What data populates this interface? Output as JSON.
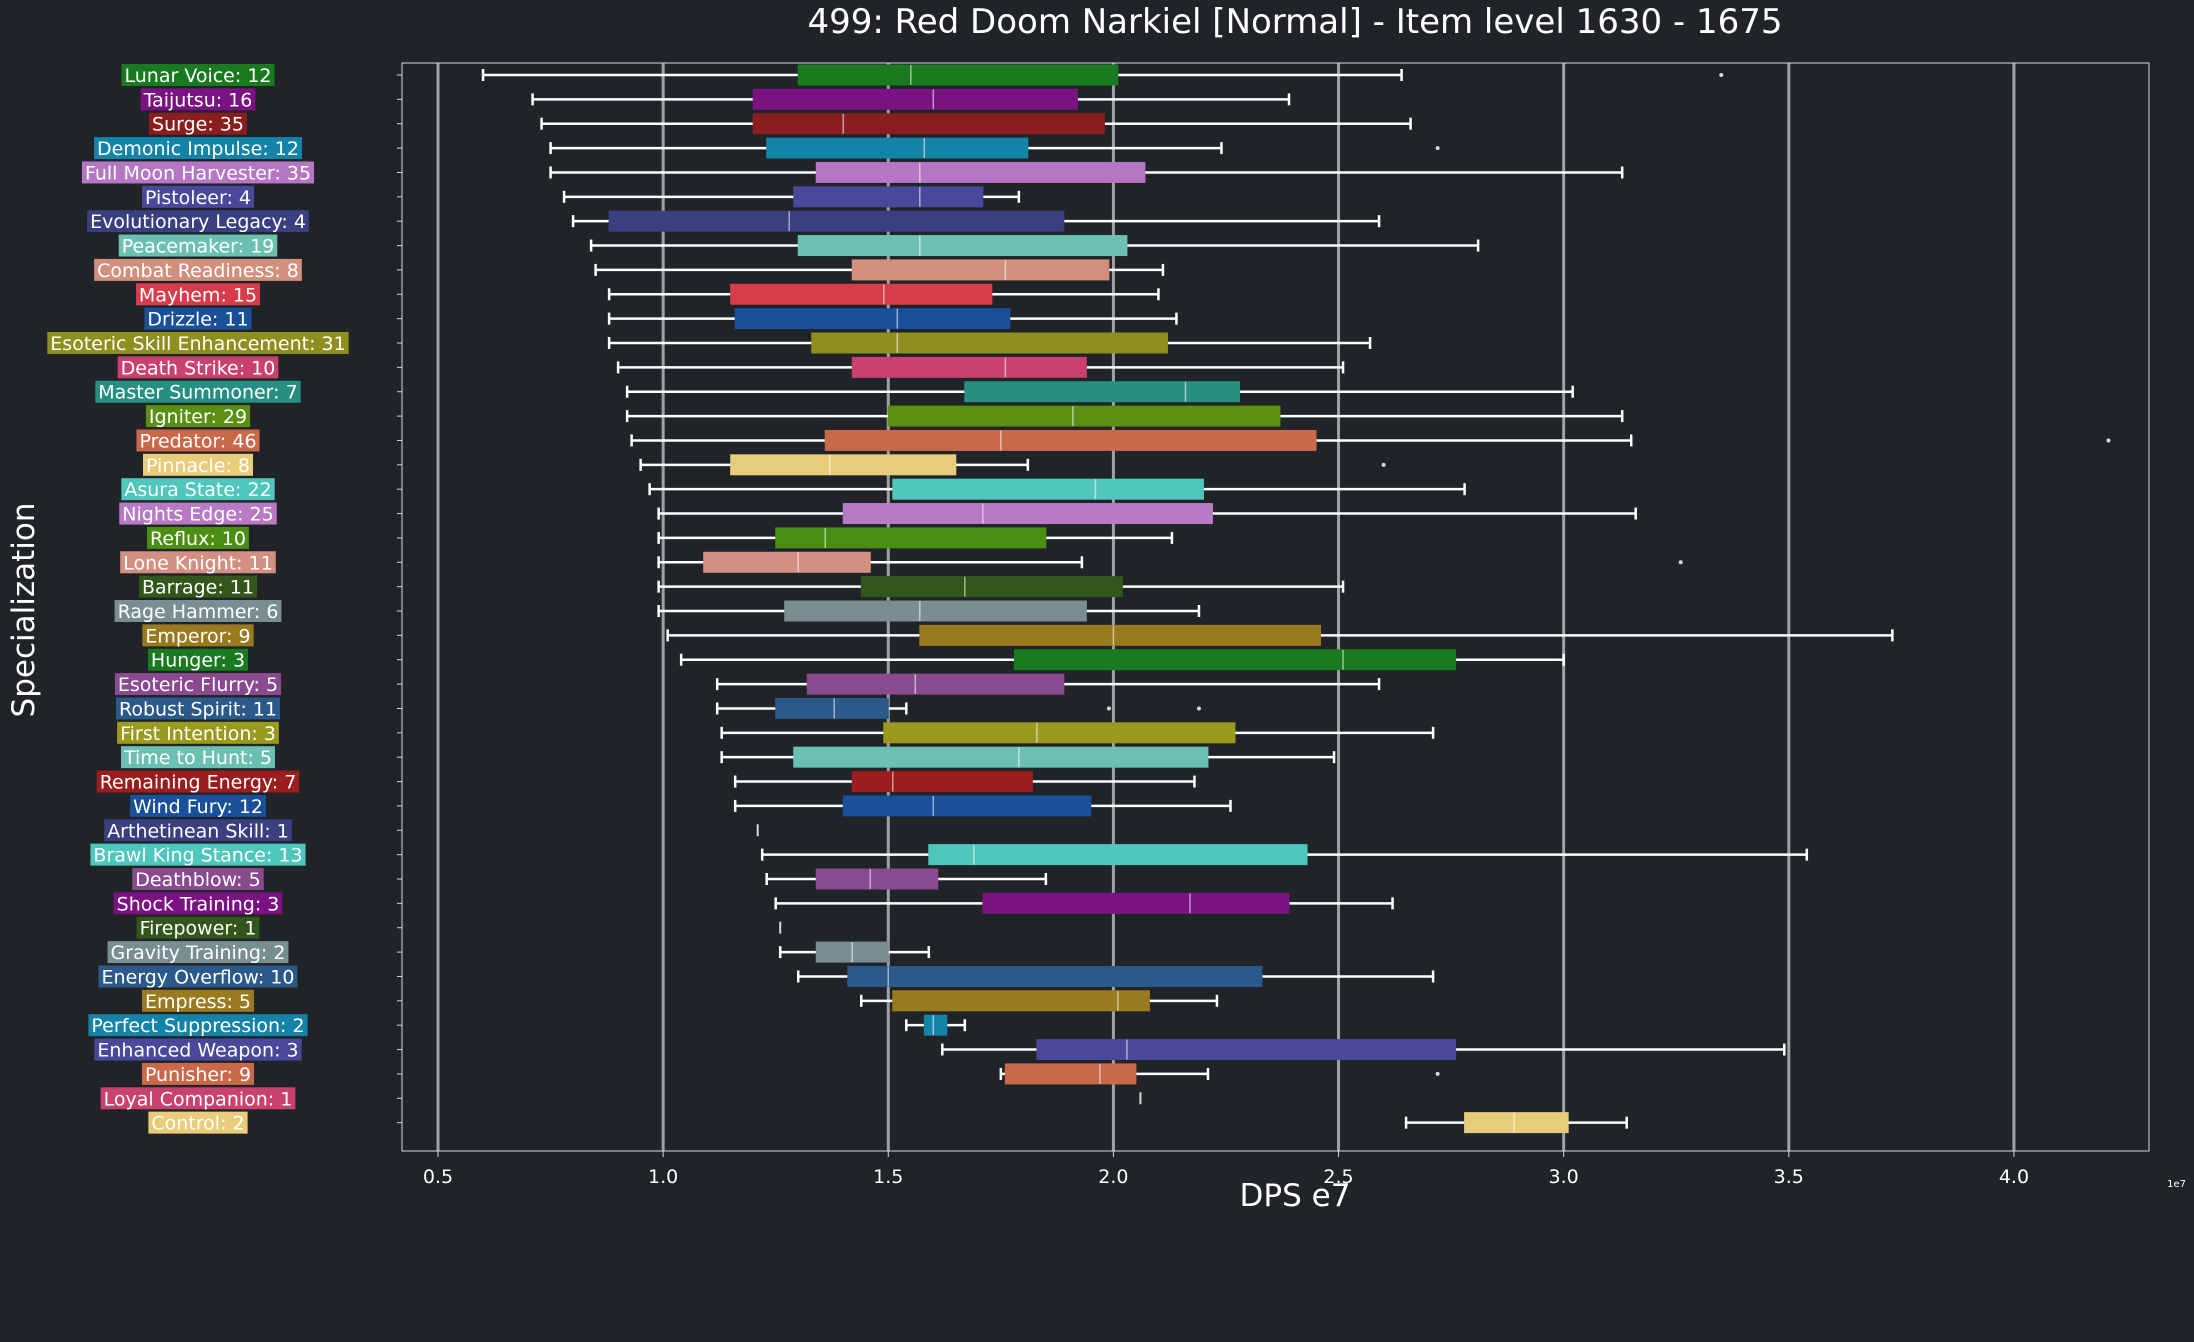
{
  "chart_data": {
    "type": "boxplot",
    "title": "499: Red Doom Narkiel [Normal] - Item level 1630 - 1675",
    "xlabel": "DPS e7",
    "ylabel": "Specialization",
    "x_exponent_label": "1e7",
    "xlim": [
      4200000,
      43000000
    ],
    "xticks": [
      5000000,
      10000000,
      15000000,
      20000000,
      25000000,
      30000000,
      35000000,
      40000000
    ],
    "xtick_labels": [
      "0.5",
      "1.0",
      "1.5",
      "2.0",
      "2.5",
      "3.0",
      "3.5",
      "4.0"
    ],
    "grid": "vertical",
    "series": [
      {
        "label": "Lunar Voice: 12",
        "color": "#1a7a1f",
        "whisker_low": 6000000.0,
        "q1": 13000000.0,
        "median": 15500000.0,
        "q3": 20100000.0,
        "whisker_high": 26400000.0,
        "outliers": [
          33500000.0
        ]
      },
      {
        "label": "Taijutsu: 16",
        "color": "#7b1282",
        "whisker_low": 7100000.0,
        "q1": 12000000.0,
        "median": 16000000.0,
        "q3": 19200000.0,
        "whisker_high": 23900000.0,
        "outliers": []
      },
      {
        "label": "Surge: 35",
        "color": "#8a1e1e",
        "whisker_low": 7300000.0,
        "q1": 12000000.0,
        "median": 14000000.0,
        "q3": 19800000.0,
        "whisker_high": 26600000.0,
        "outliers": []
      },
      {
        "label": "Demonic Impulse: 12",
        "color": "#1483a8",
        "whisker_low": 7500000.0,
        "q1": 12300000.0,
        "median": 15800000.0,
        "q3": 18100000.0,
        "whisker_high": 22400000.0,
        "outliers": [
          27200000.0
        ]
      },
      {
        "label": "Full Moon Harvester: 35",
        "color": "#b576c4",
        "whisker_low": 7500000.0,
        "q1": 13400000.0,
        "median": 15700000.0,
        "q3": 20700000.0,
        "whisker_high": 31300000.0,
        "outliers": []
      },
      {
        "label": "Pistoleer: 4",
        "color": "#49489a",
        "whisker_low": 7800000.0,
        "q1": 12900000.0,
        "median": 15700000.0,
        "q3": 17100000.0,
        "whisker_high": 17900000.0,
        "outliers": []
      },
      {
        "label": "Evolutionary Legacy: 4",
        "color": "#3a3f7f",
        "whisker_low": 8000000.0,
        "q1": 8800000.0,
        "median": 12800000.0,
        "q3": 18900000.0,
        "whisker_high": 25900000.0,
        "outliers": []
      },
      {
        "label": "Peacemaker: 19",
        "color": "#6bc0b2",
        "whisker_low": 8400000.0,
        "q1": 13000000.0,
        "median": 15700000.0,
        "q3": 20300000.0,
        "whisker_high": 28100000.0,
        "outliers": []
      },
      {
        "label": "Combat Readiness: 8",
        "color": "#d1907d",
        "whisker_low": 8500000.0,
        "q1": 14200000.0,
        "median": 17600000.0,
        "q3": 19900000.0,
        "whisker_high": 21100000.0,
        "outliers": []
      },
      {
        "label": "Mayhem: 15",
        "color": "#d63c4a",
        "whisker_low": 8800000.0,
        "q1": 11500000.0,
        "median": 14900000.0,
        "q3": 17300000.0,
        "whisker_high": 21000000.0,
        "outliers": []
      },
      {
        "label": "Drizzle: 11",
        "color": "#1a4f99",
        "whisker_low": 8800000.0,
        "q1": 11600000.0,
        "median": 15200000.0,
        "q3": 17700000.0,
        "whisker_high": 21400000.0,
        "outliers": []
      },
      {
        "label": "Esoteric Skill Enhancement: 31",
        "color": "#8f8f1f",
        "whisker_low": 8800000.0,
        "q1": 13300000.0,
        "median": 15200000.0,
        "q3": 21200000.0,
        "whisker_high": 25700000.0,
        "outliers": []
      },
      {
        "label": "Death Strike: 10",
        "color": "#c9416d",
        "whisker_low": 9000000.0,
        "q1": 14200000.0,
        "median": 17600000.0,
        "q3": 19400000.0,
        "whisker_high": 25100000.0,
        "outliers": []
      },
      {
        "label": "Master Summoner: 7",
        "color": "#278f81",
        "whisker_low": 9200000.0,
        "q1": 16700000.0,
        "median": 21600000.0,
        "q3": 22800000.0,
        "whisker_high": 30200000.0,
        "outliers": []
      },
      {
        "label": "Igniter: 29",
        "color": "#5a8f12",
        "whisker_low": 9200000.0,
        "q1": 15000000.0,
        "median": 19100000.0,
        "q3": 23700000.0,
        "whisker_high": 31300000.0,
        "outliers": []
      },
      {
        "label": "Predator: 46",
        "color": "#c9694a",
        "whisker_low": 9300000.0,
        "q1": 13600000.0,
        "median": 17500000.0,
        "q3": 24500000.0,
        "whisker_high": 31500000.0,
        "outliers": [
          42100000.0
        ]
      },
      {
        "label": "Pinnacle: 8",
        "color": "#e8cc7a",
        "whisker_low": 9500000.0,
        "q1": 11500000.0,
        "median": 13700000.0,
        "q3": 16500000.0,
        "whisker_high": 18100000.0,
        "outliers": [
          26000000.0
        ]
      },
      {
        "label": "Asura State: 22",
        "color": "#4fc7bc",
        "whisker_low": 9700000.0,
        "q1": 15100000.0,
        "median": 19600000.0,
        "q3": 22000000.0,
        "whisker_high": 27800000.0,
        "outliers": []
      },
      {
        "label": "Nights Edge: 25",
        "color": "#b87ac4",
        "whisker_low": 9900000.0,
        "q1": 14000000.0,
        "median": 17100000.0,
        "q3": 22200000.0,
        "whisker_high": 31600000.0,
        "outliers": []
      },
      {
        "label": "Reflux: 10",
        "color": "#4a8f12",
        "whisker_low": 9900000.0,
        "q1": 12500000.0,
        "median": 13600000.0,
        "q3": 18500000.0,
        "whisker_high": 21300000.0,
        "outliers": []
      },
      {
        "label": "Lone Knight: 11",
        "color": "#d38f82",
        "whisker_low": 9900000.0,
        "q1": 10900000.0,
        "median": 13000000.0,
        "q3": 14600000.0,
        "whisker_high": 19300000.0,
        "outliers": [
          32600000.0
        ]
      },
      {
        "label": "Barrage: 11",
        "color": "#33571a",
        "whisker_low": 9900000.0,
        "q1": 14400000.0,
        "median": 16700000.0,
        "q3": 20200000.0,
        "whisker_high": 25100000.0,
        "outliers": []
      },
      {
        "label": "Rage Hammer: 6",
        "color": "#788e92",
        "whisker_low": 9900000.0,
        "q1": 12700000.0,
        "median": 15700000.0,
        "q3": 19400000.0,
        "whisker_high": 21900000.0,
        "outliers": []
      },
      {
        "label": "Emperor: 9",
        "color": "#9a7a1f",
        "whisker_low": 10100000.0,
        "q1": 15700000.0,
        "median": 20000000.0,
        "q3": 24600000.0,
        "whisker_high": 37300000.0,
        "outliers": []
      },
      {
        "label": "Hunger: 3",
        "color": "#1a7a1f",
        "whisker_low": 10400000.0,
        "q1": 17800000.0,
        "median": 25100000.0,
        "q3": 27600000.0,
        "whisker_high": 30000000.0,
        "outliers": []
      },
      {
        "label": "Esoteric Flurry: 5",
        "color": "#8a4a8f",
        "whisker_low": 11200000.0,
        "q1": 13200000.0,
        "median": 15600000.0,
        "q3": 18900000.0,
        "whisker_high": 25900000.0,
        "outliers": []
      },
      {
        "label": "Robust Spirit: 11",
        "color": "#2b5a8a",
        "whisker_low": 11200000.0,
        "q1": 12500000.0,
        "median": 13800000.0,
        "q3": 15000000.0,
        "whisker_high": 15400000.0,
        "outliers": [
          19900000.0,
          21900000.0
        ]
      },
      {
        "label": "First Intention: 3",
        "color": "#9a9a1f",
        "whisker_low": 11300000.0,
        "q1": 14900000.0,
        "median": 18300000.0,
        "q3": 22700000.0,
        "whisker_high": 27100000.0,
        "outliers": []
      },
      {
        "label": "Time to Hunt: 5",
        "color": "#6bc0b2",
        "whisker_low": 11300000.0,
        "q1": 12900000.0,
        "median": 17900000.0,
        "q3": 22100000.0,
        "whisker_high": 24900000.0,
        "outliers": []
      },
      {
        "label": "Remaining Energy: 7",
        "color": "#9a1e1e",
        "whisker_low": 11600000.0,
        "q1": 14200000.0,
        "median": 15100000.0,
        "q3": 18200000.0,
        "whisker_high": 21800000.0,
        "outliers": []
      },
      {
        "label": "Wind Fury: 12",
        "color": "#1a4f99",
        "whisker_low": 11600000.0,
        "q1": 14000000.0,
        "median": 16000000.0,
        "q3": 19500000.0,
        "whisker_high": 22600000.0,
        "outliers": []
      },
      {
        "label": "Arthetinean Skill: 1",
        "color": "#3a3f7f",
        "whisker_low": 12100000.0,
        "q1": 12100000.0,
        "median": 12100000.0,
        "q3": 12100000.0,
        "whisker_high": 12100000.0,
        "outliers": []
      },
      {
        "label": "Brawl King Stance: 13",
        "color": "#4fc7bc",
        "whisker_low": 12200000.0,
        "q1": 15900000.0,
        "median": 16900000.0,
        "q3": 24300000.0,
        "whisker_high": 35400000.0,
        "outliers": []
      },
      {
        "label": "Deathblow: 5",
        "color": "#8a4a8f",
        "whisker_low": 12300000.0,
        "q1": 13400000.0,
        "median": 14600000.0,
        "q3": 16100000.0,
        "whisker_high": 18500000.0,
        "outliers": []
      },
      {
        "label": "Shock Training: 3",
        "color": "#7b1282",
        "whisker_low": 12500000.0,
        "q1": 17100000.0,
        "median": 21700000.0,
        "q3": 23900000.0,
        "whisker_high": 26200000.0,
        "outliers": []
      },
      {
        "label": "Firepower: 1",
        "color": "#33571a",
        "whisker_low": 12600000.0,
        "q1": 12600000.0,
        "median": 12600000.0,
        "q3": 12600000.0,
        "whisker_high": 12600000.0,
        "outliers": []
      },
      {
        "label": "Gravity Training: 2",
        "color": "#788e92",
        "whisker_low": 12600000.0,
        "q1": 13400000.0,
        "median": 14200000.0,
        "q3": 15000000.0,
        "whisker_high": 15900000.0,
        "outliers": []
      },
      {
        "label": "Energy Overflow: 10",
        "color": "#2b5a8a",
        "whisker_low": 13000000.0,
        "q1": 14100000.0,
        "median": 15000000.0,
        "q3": 23300000.0,
        "whisker_high": 27100000.0,
        "outliers": []
      },
      {
        "label": "Empress: 5",
        "color": "#9a7a1f",
        "whisker_low": 14400000.0,
        "q1": 15100000.0,
        "median": 20100000.0,
        "q3": 20800000.0,
        "whisker_high": 22300000.0,
        "outliers": []
      },
      {
        "label": "Perfect Suppression: 2",
        "color": "#1483a8",
        "whisker_low": 15400000.0,
        "q1": 15800000.0,
        "median": 16000000.0,
        "q3": 16300000.0,
        "whisker_high": 16700000.0,
        "outliers": []
      },
      {
        "label": "Enhanced Weapon: 3",
        "color": "#49489a",
        "whisker_low": 16200000.0,
        "q1": 18300000.0,
        "median": 20300000.0,
        "q3": 27600000.0,
        "whisker_high": 34900000.0,
        "outliers": []
      },
      {
        "label": "Punisher: 9",
        "color": "#c9694a",
        "whisker_low": 17500000.0,
        "q1": 17600000.0,
        "median": 19700000.0,
        "q3": 20500000.0,
        "whisker_high": 22100000.0,
        "outliers": [
          27200000.0
        ]
      },
      {
        "label": "Loyal Companion: 1",
        "color": "#c9416d",
        "whisker_low": 20600000.0,
        "q1": 20600000.0,
        "median": 20600000.0,
        "q3": 20600000.0,
        "whisker_high": 20600000.0,
        "outliers": []
      },
      {
        "label": "Control: 2",
        "color": "#e8cc7a",
        "whisker_low": 26500000.0,
        "q1": 27800000.0,
        "median": 28900000.0,
        "q3": 30100000.0,
        "whisker_high": 31400000.0,
        "outliers": []
      }
    ]
  }
}
